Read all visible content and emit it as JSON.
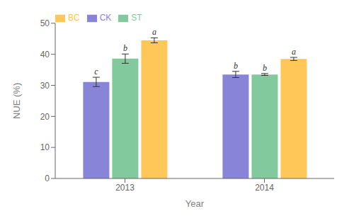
{
  "chart_data": {
    "type": "bar",
    "xlabel": "Year",
    "ylabel": "NUE (%)",
    "categories": [
      "2013",
      "2014"
    ],
    "series": [
      {
        "name": "CK",
        "color": "#8884d8",
        "values": [
          31.1,
          33.5
        ],
        "errors": [
          1.5,
          1.0
        ],
        "letters": [
          "c",
          "b"
        ]
      },
      {
        "name": "ST",
        "color": "#82ca9d",
        "values": [
          38.6,
          33.5
        ],
        "errors": [
          1.5,
          0.3
        ],
        "letters": [
          "b",
          "b"
        ]
      },
      {
        "name": "BC",
        "color": "#ffc658",
        "values": [
          44.5,
          38.5
        ],
        "errors": [
          0.8,
          0.5
        ],
        "letters": [
          "a",
          "a"
        ]
      }
    ],
    "ylim": [
      0,
      50
    ],
    "yticks": [
      0,
      10,
      20,
      30,
      40,
      50
    ],
    "grid": false,
    "legend": "upper left"
  }
}
